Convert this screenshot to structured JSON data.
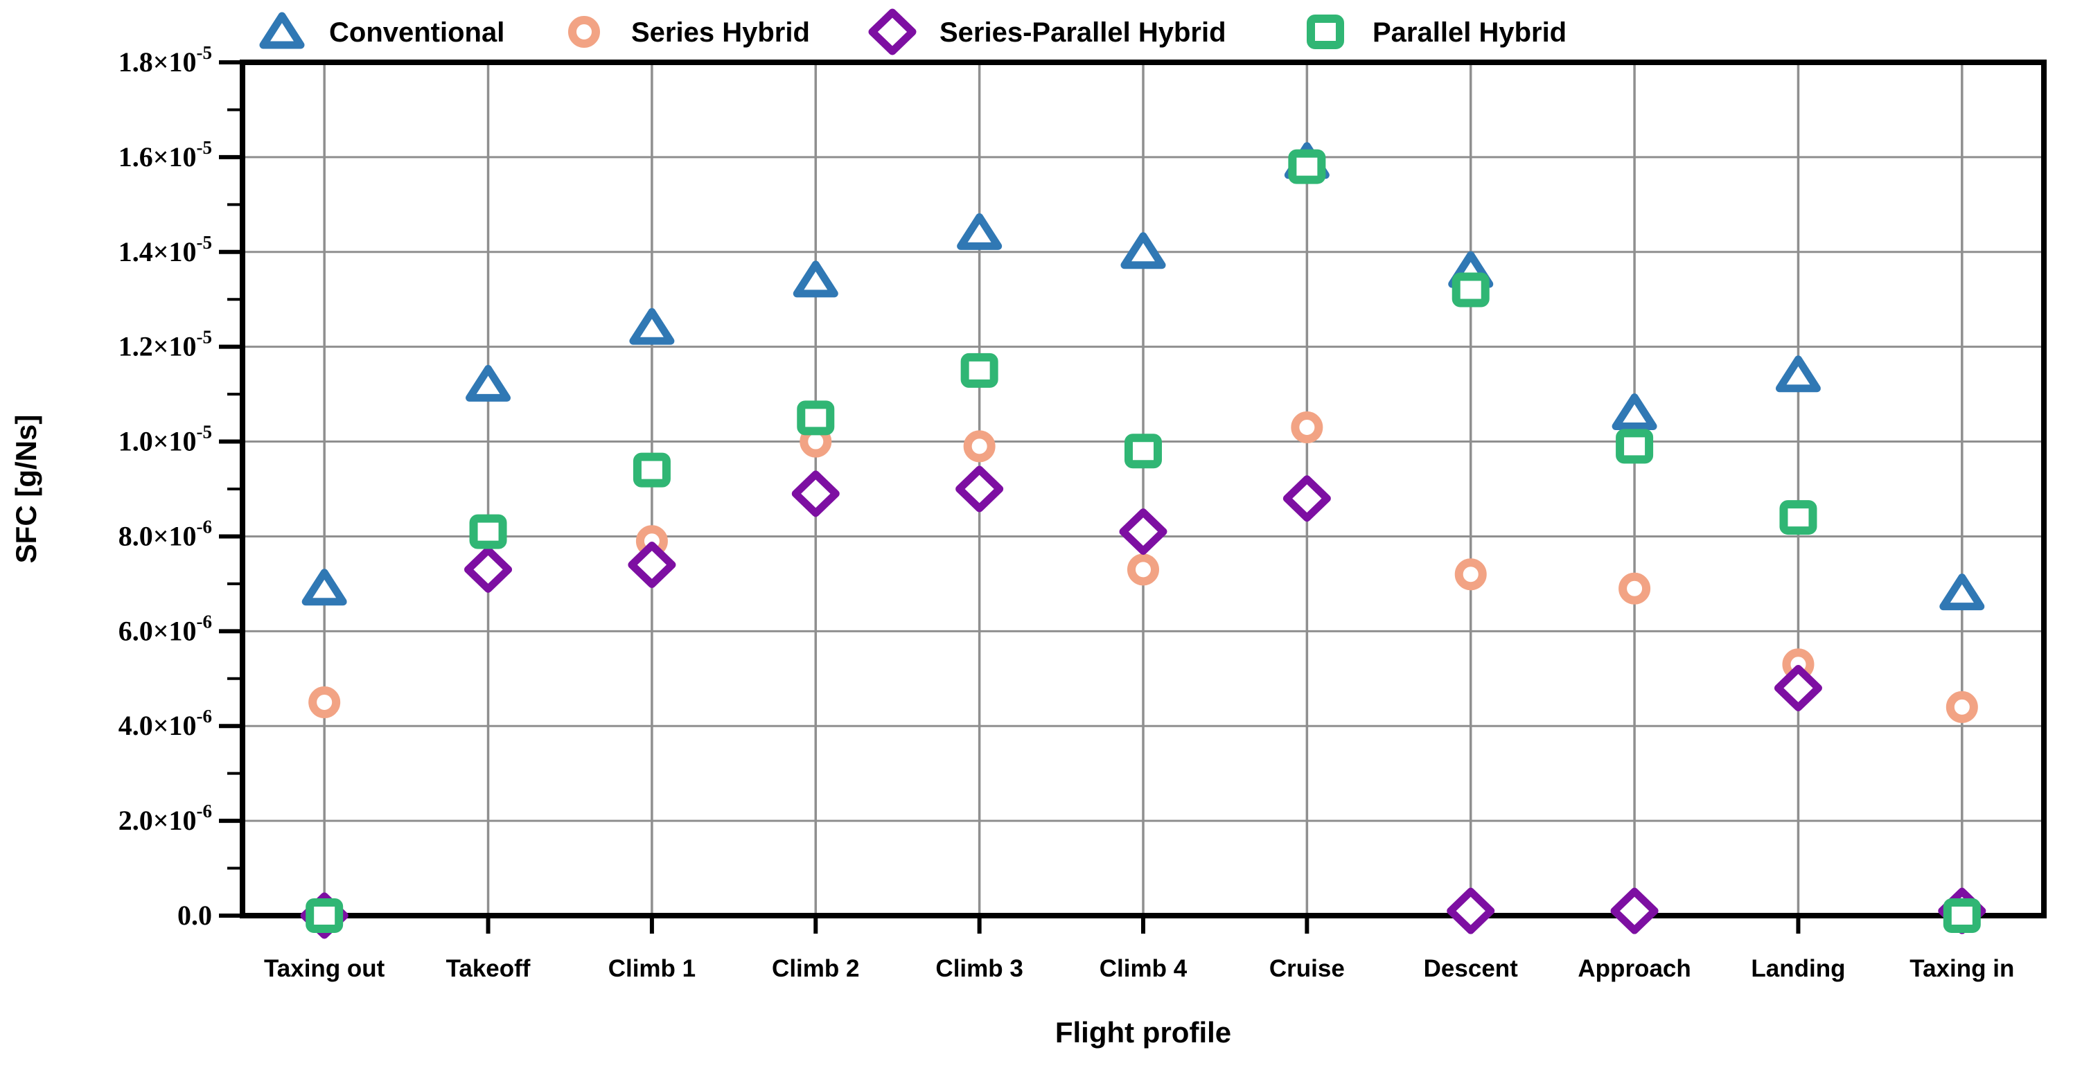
{
  "chart_data": {
    "type": "scatter",
    "title": "",
    "xlabel": "Flight profile",
    "ylabel": "SFC [g/Ns]",
    "grid": true,
    "legend_position": "top",
    "categories": [
      "Taxing out",
      "Takeoff",
      "Climb 1",
      "Climb 2",
      "Climb 3",
      "Climb 4",
      "Cruise",
      "Descent",
      "Approach",
      "Landing",
      "Taxing in"
    ],
    "y_axis": {
      "min": 0,
      "max": 1.8e-05,
      "major_step": 2e-06,
      "minor_step": 1e-06,
      "tick_labels": [
        {
          "base": "0.0",
          "sup": ""
        },
        {
          "base": "2.0×10",
          "sup": "-6"
        },
        {
          "base": "4.0×10",
          "sup": "-6"
        },
        {
          "base": "6.0×10",
          "sup": "-6"
        },
        {
          "base": "8.0×10",
          "sup": "-6"
        },
        {
          "base": "1.0×10",
          "sup": "-5"
        },
        {
          "base": "1.2×10",
          "sup": "-5"
        },
        {
          "base": "1.4×10",
          "sup": "-5"
        },
        {
          "base": "1.6×10",
          "sup": "-5"
        },
        {
          "base": "1.8×10",
          "sup": "-5"
        }
      ]
    },
    "series": [
      {
        "name": "Conventional",
        "marker": "triangle",
        "color": "#3078b4",
        "values": [
          6.9e-06,
          1.12e-05,
          1.24e-05,
          1.34e-05,
          1.44e-05,
          1.4e-05,
          1.59e-05,
          1.36e-05,
          1.06e-05,
          1.14e-05,
          6.8e-06
        ]
      },
      {
        "name": "Series Hybrid",
        "marker": "circle",
        "color": "#f2a384",
        "values": [
          4.5e-06,
          7.3e-06,
          7.9e-06,
          1e-05,
          9.9e-06,
          7.3e-06,
          1.03e-05,
          7.2e-06,
          6.9e-06,
          5.3e-06,
          4.4e-06
        ]
      },
      {
        "name": "Series-Parallel Hybrid",
        "marker": "diamond",
        "color": "#7d0fa2",
        "values": [
          0,
          7.3e-06,
          7.4e-06,
          8.9e-06,
          9e-06,
          8.1e-06,
          8.8e-06,
          1e-07,
          1e-07,
          4.8e-06,
          1e-07
        ]
      },
      {
        "name": "Parallel Hybrid",
        "marker": "square",
        "color": "#30b674",
        "values": [
          0,
          8.1e-06,
          9.4e-06,
          1.05e-05,
          1.15e-05,
          9.8e-06,
          1.58e-05,
          1.32e-05,
          9.9e-06,
          8.4e-06,
          0
        ]
      }
    ]
  }
}
